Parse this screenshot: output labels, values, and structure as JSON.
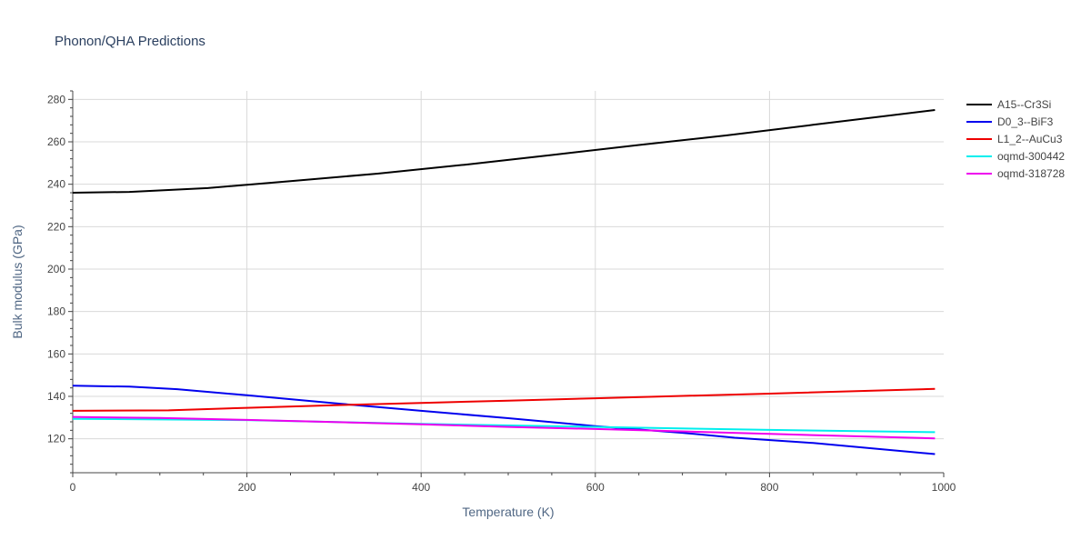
{
  "chart_data": {
    "type": "line",
    "title": "Phonon/QHA Predictions",
    "xlabel": "Temperature (K)",
    "ylabel": "Bulk modulus (GPa)",
    "xlim": [
      0,
      1000
    ],
    "ylim": [
      104,
      284
    ],
    "x_ticks": [
      0,
      200,
      400,
      600,
      800,
      1000
    ],
    "y_ticks": [
      120,
      140,
      160,
      180,
      200,
      220,
      240,
      260,
      280
    ],
    "grid": true,
    "legend_position": "top-right",
    "series": [
      {
        "name": "A15--Cr3Si",
        "color": "#000000",
        "x": [
          0,
          65,
          155,
          250,
          350,
          450,
          550,
          650,
          750,
          850,
          990
        ],
        "y": [
          236,
          236.4,
          238.2,
          241.5,
          245.0,
          249.2,
          253.8,
          258.5,
          263.0,
          268.0,
          275.0
        ]
      },
      {
        "name": "D0_3--BiF3",
        "color": "#0000ee",
        "x": [
          0,
          65,
          120,
          200,
          300,
          400,
          500,
          600,
          700,
          760,
          850,
          990
        ],
        "y": [
          145,
          144.6,
          143.4,
          140.5,
          136.8,
          133.2,
          129.7,
          126.0,
          122.8,
          120.5,
          118.0,
          112.8
        ]
      },
      {
        "name": "L1_2--AuCu3",
        "color": "#ee0000",
        "x": [
          0,
          110,
          200,
          300,
          400,
          500,
          600,
          700,
          800,
          990
        ],
        "y": [
          133.2,
          133.4,
          134.6,
          135.8,
          136.9,
          138.0,
          139.1,
          140.2,
          141.3,
          143.5
        ]
      },
      {
        "name": "oqmd-300442",
        "color": "#00eeee",
        "x": [
          0,
          200,
          400,
          600,
          800,
          990
        ],
        "y": [
          129.4,
          128.8,
          127.0,
          125.6,
          124.2,
          123.1
        ]
      },
      {
        "name": "oqmd-318728",
        "color": "#ee00ee",
        "x": [
          0,
          100,
          200,
          300,
          400,
          500,
          600,
          700,
          800,
          990
        ],
        "y": [
          130.3,
          129.8,
          128.9,
          127.9,
          126.8,
          125.6,
          124.6,
          123.5,
          122.3,
          120.2
        ]
      }
    ]
  }
}
